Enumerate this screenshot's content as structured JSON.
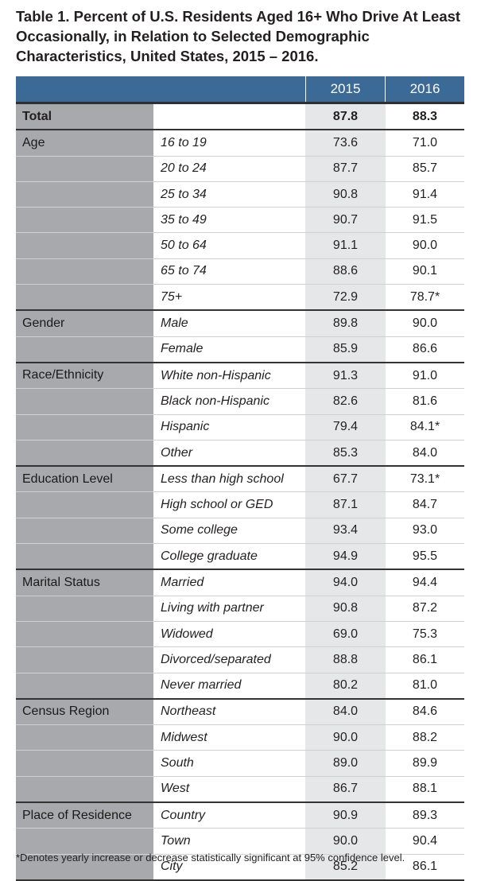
{
  "title": "Table 1.  Percent of U.S. Residents Aged 16+ Who Drive At Least Occasionally, in Relation to Selected Demographic Characteristics, United States, 2015 – 2016.",
  "header": {
    "year1": "2015",
    "year2": "2016"
  },
  "total": {
    "label": "Total",
    "v1": "87.8",
    "v2": "88.3"
  },
  "groups": [
    {
      "name": "Age",
      "rows": [
        {
          "label": "16 to 19",
          "v1": "73.6",
          "v2": "71.0"
        },
        {
          "label": "20 to 24",
          "v1": "87.7",
          "v2": "85.7"
        },
        {
          "label": "25 to 34",
          "v1": "90.8",
          "v2": "91.4"
        },
        {
          "label": "35 to 49",
          "v1": "90.7",
          "v2": "91.5"
        },
        {
          "label": "50 to 64",
          "v1": "91.1",
          "v2": "90.0"
        },
        {
          "label": "65 to 74",
          "v1": "88.6",
          "v2": "90.1"
        },
        {
          "label": "75+",
          "v1": "72.9",
          "v2": "78.7*"
        }
      ]
    },
    {
      "name": "Gender",
      "rows": [
        {
          "label": "Male",
          "v1": "89.8",
          "v2": "90.0"
        },
        {
          "label": "Female",
          "v1": "85.9",
          "v2": "86.6"
        }
      ]
    },
    {
      "name": "Race/Ethnicity",
      "rows": [
        {
          "label": "White non-Hispanic",
          "v1": "91.3",
          "v2": "91.0"
        },
        {
          "label": "Black non-Hispanic",
          "v1": "82.6",
          "v2": "81.6"
        },
        {
          "label": "Hispanic",
          "v1": "79.4",
          "v2": "84.1*"
        },
        {
          "label": "Other",
          "v1": "85.3",
          "v2": "84.0"
        }
      ]
    },
    {
      "name": "Education Level",
      "rows": [
        {
          "label": "Less than high school",
          "v1": "67.7",
          "v2": "73.1*"
        },
        {
          "label": "High school or GED",
          "v1": "87.1",
          "v2": "84.7"
        },
        {
          "label": "Some college",
          "v1": "93.4",
          "v2": "93.0"
        },
        {
          "label": "College graduate",
          "v1": "94.9",
          "v2": "95.5"
        }
      ]
    },
    {
      "name": "Marital Status",
      "rows": [
        {
          "label": "Married",
          "v1": "94.0",
          "v2": "94.4"
        },
        {
          "label": "Living with partner",
          "v1": "90.8",
          "v2": "87.2"
        },
        {
          "label": "Widowed",
          "v1": "69.0",
          "v2": "75.3"
        },
        {
          "label": "Divorced/separated",
          "v1": "88.8",
          "v2": "86.1"
        },
        {
          "label": "Never married",
          "v1": "80.2",
          "v2": "81.0"
        }
      ]
    },
    {
      "name": "Census Region",
      "rows": [
        {
          "label": "Northeast",
          "v1": "84.0",
          "v2": "84.6"
        },
        {
          "label": "Midwest",
          "v1": "90.0",
          "v2": "88.2"
        },
        {
          "label": "South",
          "v1": "89.0",
          "v2": "89.9"
        },
        {
          "label": "West",
          "v1": "86.7",
          "v2": "88.1"
        }
      ]
    },
    {
      "name": "Place of Residence",
      "rows": [
        {
          "label": "Country",
          "v1": "90.9",
          "v2": "89.3"
        },
        {
          "label": "Town",
          "v1": "90.0",
          "v2": "90.4"
        },
        {
          "label": "City",
          "v1": "85.2",
          "v2": "86.1"
        }
      ]
    }
  ],
  "footnote": "*Denotes yearly increase or decrease statistically significant at 95% confidence level."
}
